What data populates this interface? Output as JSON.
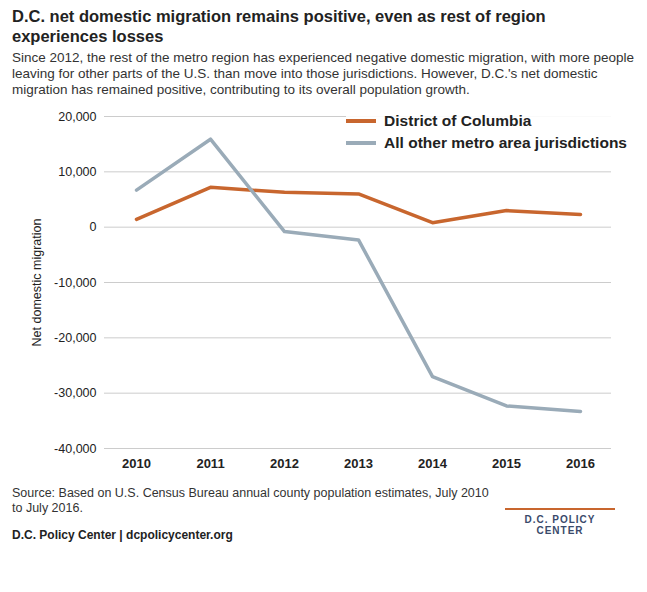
{
  "chart_data": {
    "type": "line",
    "title": "D.C. net domestic migration remains positive, even as rest of region experiences losses",
    "subtitle": "Since 2012, the rest of the metro region has experienced negative domestic migration, with more people leaving for other parts of the U.S. than move into those jurisdictions. However, D.C.'s net domestic migration has remained positive, contributing to its overall population growth.",
    "categories": [
      "2010",
      "2011",
      "2012",
      "2013",
      "2014",
      "2015",
      "2016"
    ],
    "series": [
      {
        "name": "District of Columbia",
        "color": "#c8662e",
        "values": [
          1400,
          7200,
          6300,
          6000,
          800,
          3000,
          2300
        ]
      },
      {
        "name": "All other metro area jurisdictions",
        "color": "#9aabb8",
        "values": [
          6700,
          15900,
          -800,
          -2300,
          -27000,
          -32300,
          -33300
        ]
      }
    ],
    "y_label": "Net domestic migration",
    "ylim": [
      -40000,
      20000
    ],
    "yticks": [
      {
        "value": -40000,
        "label": "-40,000"
      },
      {
        "value": -30000,
        "label": "-30,000"
      },
      {
        "value": -20000,
        "label": "-20,000"
      },
      {
        "value": -10000,
        "label": "-10,000"
      },
      0,
      {
        "value": 10000,
        "label": "10,000"
      },
      {
        "value": 20000,
        "label": "20,000"
      }
    ],
    "grid": true,
    "legend": "top-right",
    "source": "Source: Based on U.S. Census Bureau annual county population estimates, July 2010 to July 2016.",
    "footer": "D.C. Policy Center | dcpolicycenter.org",
    "logo_text": "D.C. POLICY CENTER"
  }
}
